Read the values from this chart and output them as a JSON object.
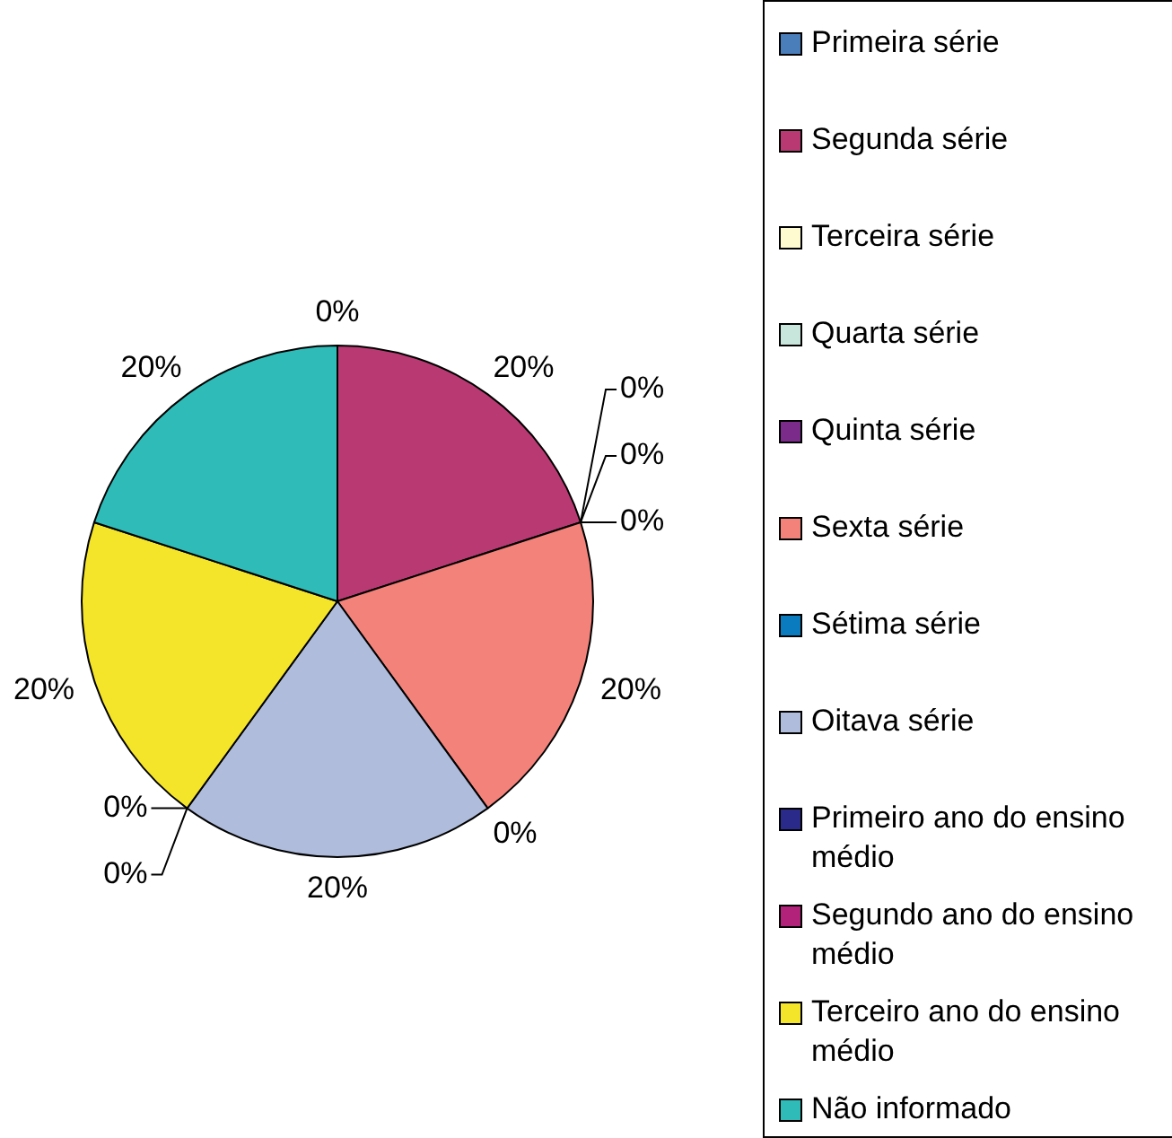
{
  "chart_data": {
    "type": "pie",
    "categories": [
      "Primeira série",
      "Segunda série",
      "Terceira série",
      "Quarta série",
      "Quinta série",
      "Sexta série",
      "Sétima série",
      "Oitava série",
      "Primeiro ano do ensino médio",
      "Segundo ano do ensino médio",
      "Terceiro ano do ensino médio",
      "Não informado"
    ],
    "values": [
      0,
      20,
      0,
      0,
      0,
      20,
      0,
      20,
      0,
      0,
      20,
      20
    ],
    "value_labels": [
      "0%",
      "20%",
      "0%",
      "0%",
      "0%",
      "20%",
      "0%",
      "20%",
      "0%",
      "0%",
      "20%",
      "20%"
    ],
    "colors": [
      "#4a7ebb",
      "#b93a72",
      "#fffbd0",
      "#c8e6dc",
      "#7b2c8a",
      "#f2827a",
      "#0a7bbf",
      "#afbcdc",
      "#2a2a8a",
      "#b2217a",
      "#f5e52a",
      "#2fbcb8"
    ],
    "legend": "right"
  }
}
